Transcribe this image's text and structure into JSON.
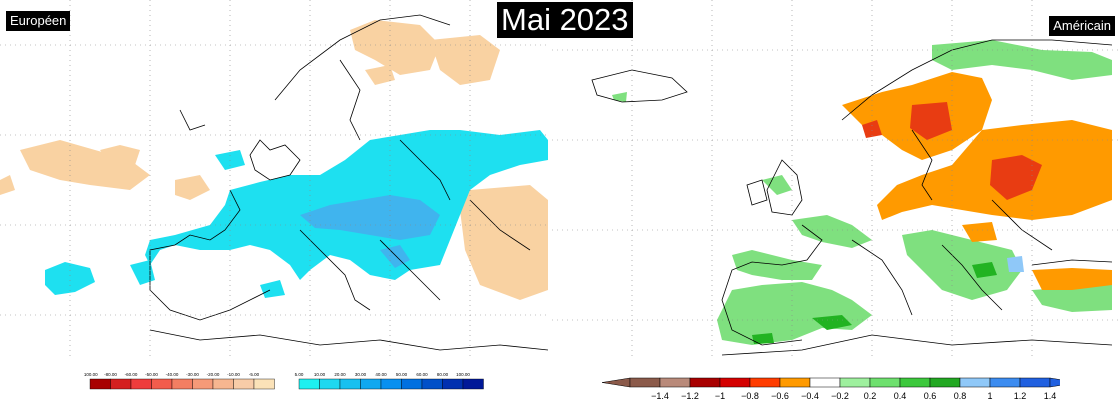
{
  "title": "Mai 2023",
  "left_panel": {
    "label": "Européen"
  },
  "right_panel": {
    "label": "Américain"
  },
  "colors": {
    "deficit_light": "#f9d2a2",
    "surplus_cyan": "#1ee0f0",
    "surplus_blue": "#40b4ee",
    "deficit_orange": "#ff9a00",
    "deficit_red": "#e83c12",
    "surplus_green": "#7fe07f",
    "surplus_green_dark": "#22b322"
  },
  "left_legend": {
    "neg_ticks": [
      "-100.00",
      "-80.00",
      "-60.00",
      "-50.00",
      "-40.00",
      "-30.00",
      "-20.00",
      "-10.00",
      "-5.00"
    ],
    "neg_colors": [
      "#a80000",
      "#d42020",
      "#ee3c3c",
      "#f25c4c",
      "#f37e62",
      "#f59a78",
      "#f6b690",
      "#f8cca8",
      "#fbe2b8"
    ],
    "pos_ticks": [
      "5.00",
      "10.00",
      "20.00",
      "30.00",
      "40.00",
      "50.00",
      "60.00",
      "80.00",
      "100.00"
    ],
    "pos_colors": [
      "#1ef0f0",
      "#1ed8f0",
      "#18c0f0",
      "#10a8f0",
      "#0890f0",
      "#0070e0",
      "#0050c8",
      "#0030b0",
      "#001898"
    ]
  },
  "right_legend": {
    "ticks": [
      "−1.4",
      "−1.2",
      "−1",
      "−0.8",
      "−0.6",
      "−0.4",
      "−0.2",
      "0.2",
      "0.4",
      "0.6",
      "0.8",
      "1",
      "1.2",
      "1.4"
    ],
    "colors": [
      "#8b5a4a",
      "#b98a7a",
      "#a80000",
      "#d40000",
      "#ff3c00",
      "#ff9a00",
      "#ffffff",
      "#9ef09e",
      "#6ee06e",
      "#3cc83c",
      "#22a822",
      "#8fc8f8",
      "#3c8cf0",
      "#2060e0"
    ]
  }
}
